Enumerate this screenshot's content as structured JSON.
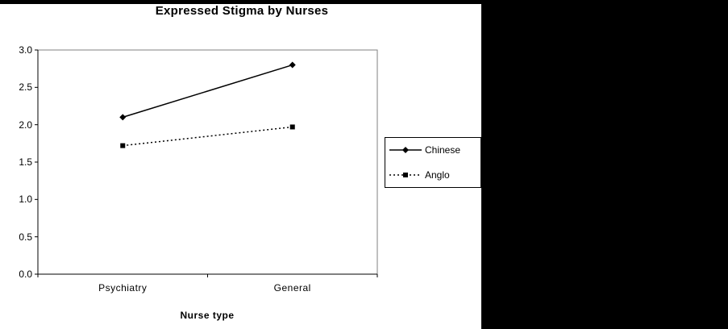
{
  "page": {
    "background": "#ffffff",
    "mask_color": "#000000",
    "line_color": "#000000",
    "plot_border_color": "#808080"
  },
  "chart_data": {
    "type": "line",
    "title": "Expressed Stigma by Nurses",
    "xlabel": "Nurse type",
    "ylabel": "",
    "categories": [
      "Psychiatry",
      "General"
    ],
    "series": [
      {
        "name": "Chinese",
        "values": [
          2.1,
          2.8
        ],
        "marker": "diamond",
        "line": "solid"
      },
      {
        "name": "Anglo",
        "values": [
          1.72,
          1.97
        ],
        "marker": "square",
        "line": "dotted"
      }
    ],
    "ylim": [
      0.0,
      3.0
    ],
    "yticks": [
      0.0,
      0.5,
      1.0,
      1.5,
      2.0,
      2.5,
      3.0
    ],
    "ytick_labels": [
      "0.0",
      "0.5",
      "1.0",
      "1.5",
      "2.0",
      "2.5",
      "3.0"
    ],
    "grid": false,
    "legend_position": "right"
  }
}
